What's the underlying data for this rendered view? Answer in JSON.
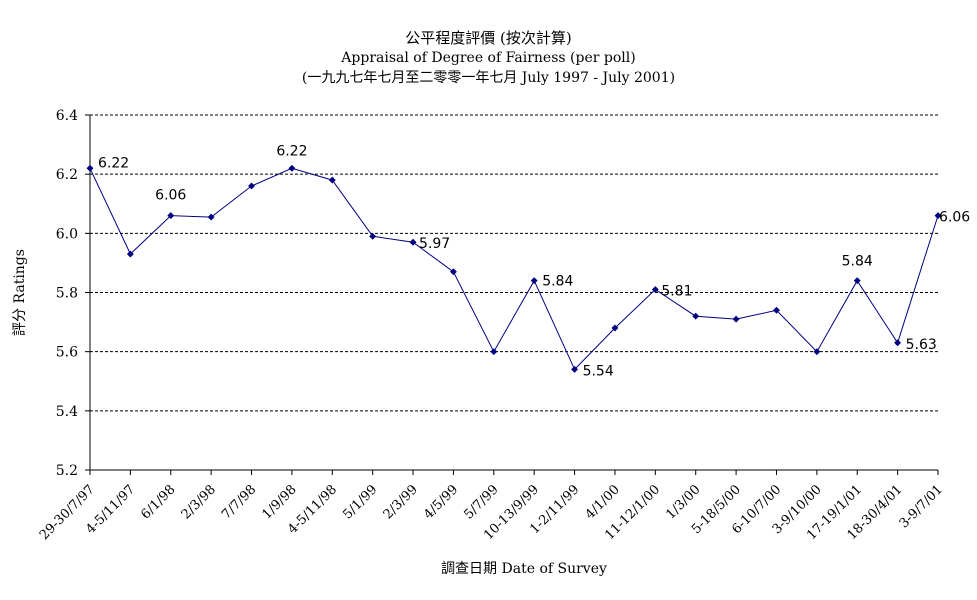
{
  "chart_data": {
    "type": "line",
    "title": "公平程度評價 (按次計算)",
    "subtitle": "Appraisal of Degree of Fairness (per poll)",
    "subtitle2": "(一九九七年七月至二零零一年七月 July 1997 - July 2001)",
    "xlabel": "調查日期 Date of Survey",
    "ylabel": "評分 Ratings",
    "ylim": [
      5.2,
      6.4
    ],
    "yticks": [
      "5.2",
      "5.4",
      "5.6",
      "5.8",
      "6.0",
      "6.2",
      "6.4"
    ],
    "grid": "horizontal-dashed",
    "color": "#000080",
    "categories": [
      "29-30/7/97",
      "4-5/11/97",
      "6/1/98",
      "2/3/98",
      "7/7/98",
      "1/9/98",
      "4-5/11/98",
      "5/1/99",
      "2/3/99",
      "4/5/99",
      "5/7/99",
      "10-13/9/99",
      "1-2/11/99",
      "4/1/00",
      "11-12/1/00",
      "1/3/00",
      "5-18/5/00",
      "6-10/7/00",
      "3-9/10/00",
      "17-19/1/01",
      "18-30/4/01",
      "3-9/7/01"
    ],
    "values": [
      6.22,
      5.93,
      6.06,
      6.055,
      6.16,
      6.22,
      6.18,
      5.99,
      5.97,
      5.87,
      5.6,
      5.84,
      5.54,
      5.68,
      5.81,
      5.72,
      5.71,
      5.74,
      5.6,
      5.84,
      5.63,
      6.06
    ],
    "data_labels": [
      {
        "index": 0,
        "text": "6.22"
      },
      {
        "index": 2,
        "text": "6.06"
      },
      {
        "index": 5,
        "text": "6.22"
      },
      {
        "index": 8,
        "text": "5.97"
      },
      {
        "index": 11,
        "text": "5.84"
      },
      {
        "index": 12,
        "text": "5.54"
      },
      {
        "index": 14,
        "text": "5.81"
      },
      {
        "index": 19,
        "text": "5.84"
      },
      {
        "index": 20,
        "text": "5.63"
      },
      {
        "index": 21,
        "text": "6.06"
      }
    ]
  }
}
